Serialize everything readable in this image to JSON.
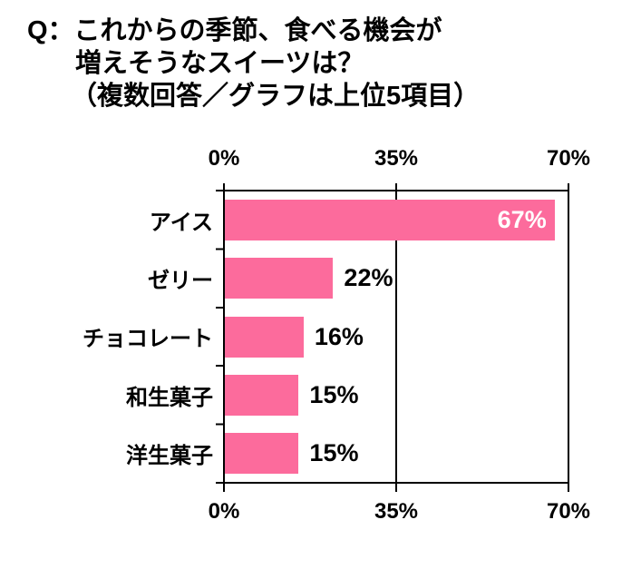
{
  "title": {
    "line1": "Q：これからの季節、食べる機会が",
    "line2": "増えそうなスイーツは？",
    "line3": "（複数回答／グラフは上位5項目）"
  },
  "chart_data": {
    "type": "bar",
    "orientation": "horizontal",
    "title": "Q：これからの季節、食べる機会が増えそうなスイーツは？（複数回答／グラフは上位5項目）",
    "categories": [
      "アイス",
      "ゼリー",
      "チョコレート",
      "和生菓子",
      "洋生菓子"
    ],
    "values": [
      67,
      22,
      16,
      15,
      15
    ],
    "value_labels": [
      "67%",
      "22%",
      "16%",
      "15%",
      "15%"
    ],
    "xlim": [
      0,
      70
    ],
    "x_ticks": [
      0,
      35,
      70
    ],
    "x_tick_labels": [
      "0%",
      "35%",
      "70%"
    ],
    "axis_label_positions": "top and bottom",
    "grid": true,
    "legend_position": "none",
    "bar_color": "#FC6B9C",
    "axis_color": "#000000",
    "value_label_inside_color": "#FFFFFF",
    "value_label_outside_color": "#000000",
    "title_color": "#000000"
  }
}
